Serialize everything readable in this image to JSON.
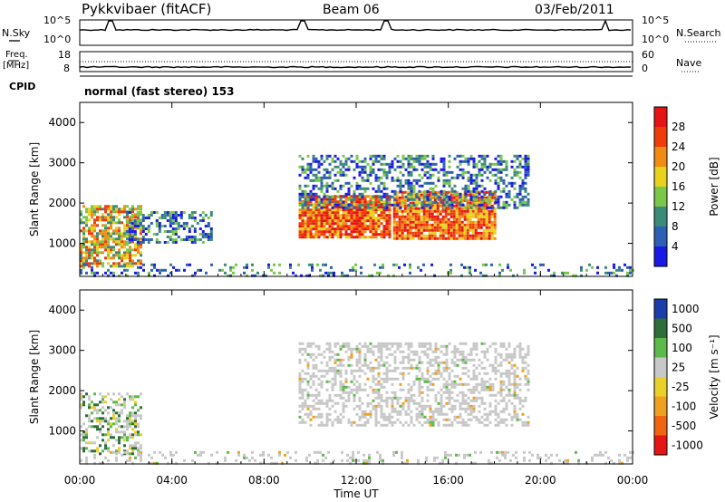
{
  "header": {
    "station": "Pykkvibaer (fitACF)",
    "beam": "Beam 06",
    "date": "03/Feb/2011"
  },
  "top_panel": {
    "left_label": "N.Sky",
    "left_ticks": [
      "10^5",
      "10^0"
    ],
    "right_label": "N.Search",
    "right_ticks": [
      "10^5",
      "10^0"
    ]
  },
  "freq_panel": {
    "left_label_1": "Freq.",
    "left_label_2": "[MHz]",
    "left_ticks": [
      "18",
      "8"
    ],
    "right_label": "Nave",
    "right_ticks": [
      "60",
      "0"
    ],
    "cpid_label": "CPID"
  },
  "mode_text": "normal (fast stereo) 153",
  "chart_data": [
    {
      "type": "heatmap",
      "quantity": "Power",
      "xlabel": "Time UT",
      "ylabel": "Slant Range [km]",
      "x_ticks": [
        "00:00",
        "04:00",
        "08:00",
        "12:00",
        "16:00",
        "20:00",
        "00:00"
      ],
      "x_range_hours": [
        0,
        24
      ],
      "y_ticks": [
        1000,
        2000,
        3000,
        4000
      ],
      "y_range_km": [
        180,
        4500
      ],
      "colorbar_label": "Power [dB]",
      "colorbar_ticks": [
        4,
        8,
        12,
        16,
        20,
        24,
        28
      ],
      "colorbar_range": [
        0,
        32
      ],
      "colorbar_colors": [
        "#1a1ae6",
        "#2d5fb4",
        "#3c8a78",
        "#7ac84a",
        "#e8d21e",
        "#f08c14",
        "#f03c0a",
        "#e61414"
      ],
      "echo_regions": [
        {
          "t0": 0.0,
          "t1": 2.6,
          "r0": 450,
          "r1": 1950,
          "level": "mid"
        },
        {
          "t0": 2.0,
          "t1": 5.7,
          "r0": 1050,
          "r1": 1800,
          "level": "low"
        },
        {
          "t0": 9.5,
          "t1": 13.4,
          "r0": 1150,
          "r1": 2200,
          "level": "high"
        },
        {
          "t0": 13.6,
          "t1": 18.0,
          "r0": 1150,
          "r1": 2300,
          "level": "high"
        },
        {
          "t0": 9.5,
          "t1": 19.5,
          "r0": 1900,
          "r1": 3200,
          "level": "low"
        },
        {
          "t0": 0.0,
          "t1": 24.0,
          "r0": 180,
          "r1": 500,
          "level": "low"
        }
      ]
    },
    {
      "type": "heatmap",
      "quantity": "Velocity",
      "xlabel": "Time UT",
      "ylabel": "Slant Range [km]",
      "x_ticks": [
        "00:00",
        "04:00",
        "08:00",
        "12:00",
        "16:00",
        "20:00",
        "00:00"
      ],
      "x_range_hours": [
        0,
        24
      ],
      "y_ticks": [
        1000,
        2000,
        3000,
        4000
      ],
      "y_range_km": [
        180,
        4500
      ],
      "colorbar_label": "Velocity [m s⁻¹]",
      "colorbar_ticks": [
        "1000",
        "500",
        "100",
        "25",
        "-25",
        "-100",
        "-500",
        "-1000"
      ],
      "colorbar_colors": [
        "#1c3caa",
        "#2e6e3a",
        "#5cba4a",
        "#c8c8c8",
        "#e8d22a",
        "#f0a020",
        "#f06414",
        "#e61414"
      ],
      "dominant_color": "#c8c8c8",
      "echo_regions": [
        {
          "t0": 0.0,
          "t1": 2.6,
          "r0": 450,
          "r1": 1950,
          "level": "mixed"
        },
        {
          "t0": 9.5,
          "t1": 19.5,
          "r0": 1150,
          "r1": 3200,
          "level": "ground"
        },
        {
          "t0": 0.0,
          "t1": 24.0,
          "r0": 180,
          "r1": 500,
          "level": "ground"
        }
      ]
    }
  ]
}
